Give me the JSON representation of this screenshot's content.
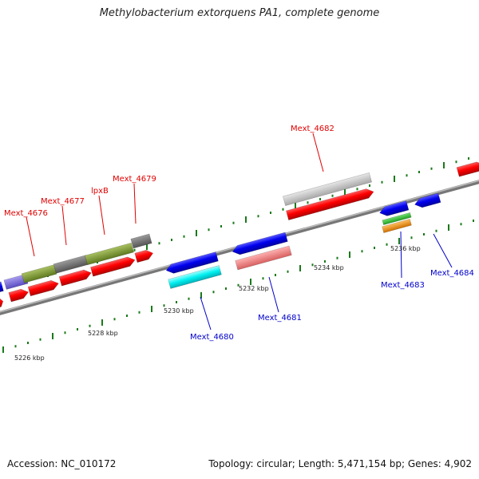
{
  "title": "Methylobacterium extorquens PA1, complete genome",
  "footer": {
    "accession": "Accession: NC_010172",
    "topology": "Topology: circular; Length: 5,471,154 bp; Genes: 4,902"
  },
  "colors": {
    "forward_label": "#e00000",
    "reverse_label": "#0000cc",
    "backbone": "#888888",
    "tick": "#1a7a1a"
  },
  "kbp_labels": [
    "5226 kbp",
    "5228 kbp",
    "5230 kbp",
    "5232 kbp",
    "5234 kbp",
    "5236 kbp"
  ],
  "gene_labels": [
    {
      "id": "Mext_4676",
      "text": "Mext_4676",
      "strand": "forward"
    },
    {
      "id": "Mext_4677",
      "text": "Mext_4677",
      "strand": "forward"
    },
    {
      "id": "lpxB",
      "text": "lpxB",
      "strand": "forward"
    },
    {
      "id": "Mext_4679",
      "text": "Mext_4679",
      "strand": "forward"
    },
    {
      "id": "Mext_4682",
      "text": "Mext_4682",
      "strand": "forward"
    },
    {
      "id": "Mext_4680",
      "text": "Mext_4680",
      "strand": "reverse"
    },
    {
      "id": "Mext_4681",
      "text": "Mext_4681",
      "strand": "reverse"
    },
    {
      "id": "Mext_4683",
      "text": "Mext_4683",
      "strand": "reverse"
    },
    {
      "id": "Mext_4684",
      "text": "Mext_4684",
      "strand": "reverse"
    }
  ]
}
